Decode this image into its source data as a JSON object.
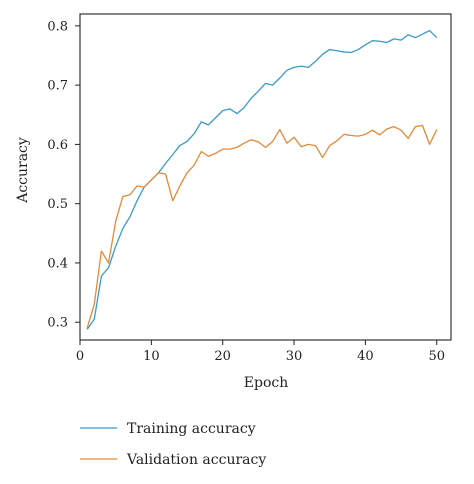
{
  "chart_data": {
    "type": "line",
    "title": "",
    "xlabel": "Epoch",
    "ylabel": "Accuracy",
    "xlim": [
      0,
      52
    ],
    "ylim": [
      0.27,
      0.82
    ],
    "xticks": [
      0,
      10,
      20,
      30,
      40,
      50
    ],
    "yticks": [
      0.3,
      0.4,
      0.5,
      0.6,
      0.7,
      0.8
    ],
    "grid": false,
    "legend_position": "bottom",
    "x": [
      1,
      2,
      3,
      4,
      5,
      6,
      7,
      8,
      9,
      10,
      11,
      12,
      13,
      14,
      15,
      16,
      17,
      18,
      19,
      20,
      21,
      22,
      23,
      24,
      25,
      26,
      27,
      28,
      29,
      30,
      31,
      32,
      33,
      34,
      35,
      36,
      37,
      38,
      39,
      40,
      41,
      42,
      43,
      44,
      45,
      46,
      47,
      48,
      49,
      50
    ],
    "series": [
      {
        "name": "Training accuracy",
        "color": "#3a9bc8",
        "values": [
          0.288,
          0.305,
          0.378,
          0.392,
          0.428,
          0.458,
          0.478,
          0.505,
          0.528,
          0.54,
          0.552,
          0.568,
          0.583,
          0.598,
          0.605,
          0.618,
          0.638,
          0.633,
          0.645,
          0.657,
          0.66,
          0.652,
          0.662,
          0.678,
          0.69,
          0.703,
          0.7,
          0.712,
          0.725,
          0.73,
          0.732,
          0.73,
          0.74,
          0.752,
          0.76,
          0.758,
          0.756,
          0.755,
          0.76,
          0.768,
          0.775,
          0.774,
          0.772,
          0.778,
          0.776,
          0.785,
          0.78,
          0.786,
          0.792,
          0.78
        ]
      },
      {
        "name": "Validation accuracy",
        "color": "#e3893a",
        "values": [
          0.29,
          0.33,
          0.42,
          0.4,
          0.47,
          0.512,
          0.515,
          0.53,
          0.528,
          0.54,
          0.552,
          0.55,
          0.505,
          0.53,
          0.552,
          0.565,
          0.588,
          0.58,
          0.585,
          0.592,
          0.592,
          0.595,
          0.602,
          0.608,
          0.604,
          0.595,
          0.605,
          0.625,
          0.602,
          0.612,
          0.596,
          0.6,
          0.598,
          0.578,
          0.598,
          0.606,
          0.617,
          0.615,
          0.614,
          0.617,
          0.624,
          0.616,
          0.626,
          0.63,
          0.624,
          0.61,
          0.63,
          0.632,
          0.6,
          0.625
        ]
      }
    ]
  }
}
